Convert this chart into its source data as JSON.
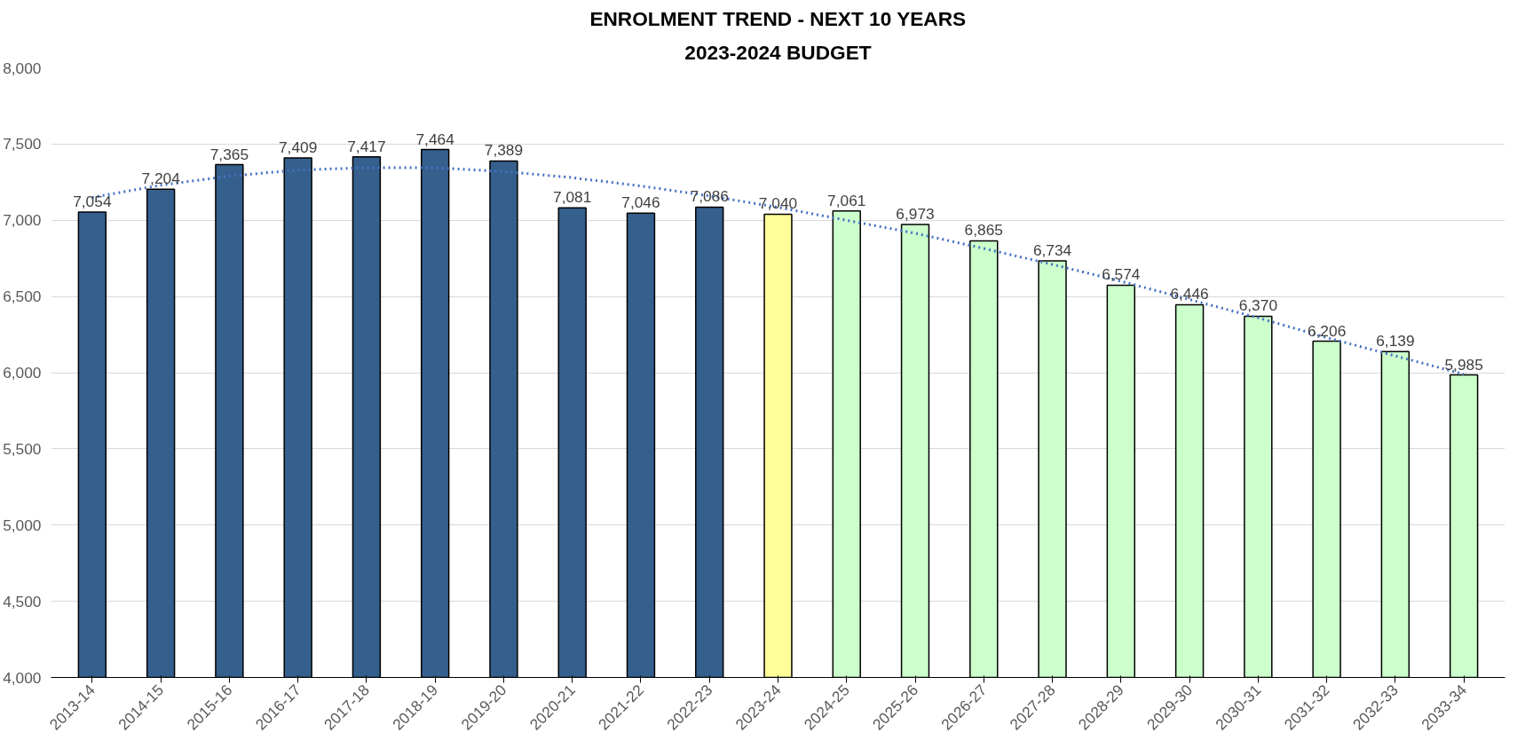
{
  "chart_data": {
    "type": "bar",
    "title": "ENROLMENT TREND - NEXT 10 YEARS",
    "subtitle": "2023-2024 BUDGET",
    "categories": [
      "2013-14",
      "2014-15",
      "2015-16",
      "2016-17",
      "2017-18",
      "2018-19",
      "2019-20",
      "2020-21",
      "2021-22",
      "2022-23",
      "2023-24",
      "2024-25",
      "2025-26",
      "2026-27",
      "2027-28",
      "2028-29",
      "2029-30",
      "2030-31",
      "2031-32",
      "2032-33",
      "2033-34"
    ],
    "values": [
      7054,
      7204,
      7365,
      7409,
      7417,
      7464,
      7389,
      7081,
      7046,
      7086,
      7040,
      7061,
      6973,
      6865,
      6734,
      6574,
      6446,
      6370,
      6206,
      6139,
      5985
    ],
    "colors": [
      "#355f8d",
      "#355f8d",
      "#355f8d",
      "#355f8d",
      "#355f8d",
      "#355f8d",
      "#355f8d",
      "#355f8d",
      "#355f8d",
      "#355f8d",
      "#ffff99",
      "#ccffcc",
      "#ccffcc",
      "#ccffcc",
      "#ccffcc",
      "#ccffcc",
      "#ccffcc",
      "#ccffcc",
      "#ccffcc",
      "#ccffcc",
      "#ccffcc"
    ],
    "value_labels": [
      "7,054",
      "7,204",
      "7,365",
      "7,409",
      "7,417",
      "7,464",
      "7,389",
      "7,081",
      "7,046",
      "7,086",
      "7,040",
      "7,061",
      "6,973",
      "6,865",
      "6,734",
      "6,574",
      "6,446",
      "6,370",
      "6,206",
      "6,139",
      "5,985"
    ],
    "series": [
      {
        "type": "line",
        "color": "#4472c4",
        "line_style": "dotted",
        "marker": "none",
        "x": [
          "2013-14",
          "2014-15",
          "2015-16",
          "2016-17",
          "2017-18",
          "2018-19",
          "2019-20",
          "2020-21",
          "2021-22",
          "2022-23",
          "2023-24",
          "2024-25",
          "2025-26",
          "2026-27",
          "2027-28",
          "2028-29",
          "2029-30",
          "2030-31",
          "2031-32",
          "2032-33",
          "2033-34"
        ],
        "values": [
          7150,
          7230,
          7290,
          7330,
          7345,
          7345,
          7320,
          7280,
          7225,
          7160,
          7085,
          7000,
          6915,
          6815,
          6710,
          6600,
          6480,
          6360,
          6230,
          6110,
          5990
        ]
      }
    ],
    "ylim": [
      4000,
      8000
    ],
    "yticks": [
      {
        "value": 4000,
        "label": "4,000"
      },
      {
        "value": 4500,
        "label": "4,500"
      },
      {
        "value": 5000,
        "label": "5,000"
      },
      {
        "value": 5500,
        "label": "5,500"
      },
      {
        "value": 6000,
        "label": "6,000"
      },
      {
        "value": 6500,
        "label": "6,500"
      },
      {
        "value": 7000,
        "label": "7,000"
      },
      {
        "value": 7500,
        "label": "7,500"
      },
      {
        "value": 8000,
        "label": "8,000"
      }
    ],
    "grid": "y"
  }
}
